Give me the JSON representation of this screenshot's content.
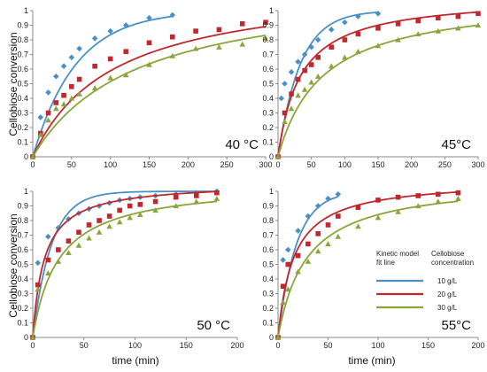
{
  "figure": {
    "ylabel": "Cellobiose conversion",
    "xlabel": "time (min)"
  },
  "legend": {
    "header_line1": "Kinetic model",
    "header_line2": "fit line",
    "header2_line1": "Cellobiose",
    "header2_line2": "concentration",
    "entries": [
      {
        "label": "10 g/L",
        "color": "#4a90c8"
      },
      {
        "label": "20 g/L",
        "color": "#c0282d"
      },
      {
        "label": "30 g/L",
        "color": "#8aa63a"
      }
    ]
  },
  "chart_data": [
    {
      "type": "scatter",
      "panel": "top-left",
      "label": "40 °C",
      "xlim": [
        0,
        300
      ],
      "ylim": [
        0,
        1
      ],
      "xticks": [
        0,
        50,
        100,
        150,
        200,
        250,
        300
      ],
      "yticks": [
        0,
        0.1,
        0.2,
        0.3,
        0.4,
        0.5,
        0.6,
        0.7,
        0.8,
        0.9,
        1
      ],
      "ytick_labels": [
        "0",
        "0.1",
        "0.2",
        "0.3",
        "0.4",
        "0.5",
        "0.6",
        "0.7",
        "0.8",
        "0.9",
        "1"
      ],
      "series": [
        {
          "marker": "diamond",
          "color": "#4a90c8",
          "x": [
            0,
            10,
            20,
            30,
            40,
            50,
            60,
            80,
            100,
            120,
            150,
            180
          ],
          "y": [
            0,
            0.27,
            0.44,
            0.55,
            0.62,
            0.68,
            0.74,
            0.81,
            0.86,
            0.9,
            0.95,
            0.97
          ],
          "fit": {
            "kind": "exp",
            "max": 1.0,
            "k": 0.018,
            "xmax": 180
          }
        },
        {
          "marker": "square",
          "color": "#c0282d",
          "x": [
            0,
            10,
            20,
            30,
            40,
            50,
            60,
            80,
            100,
            120,
            150,
            180,
            210,
            240,
            270,
            300
          ],
          "y": [
            0,
            0.16,
            0.3,
            0.37,
            0.42,
            0.48,
            0.53,
            0.62,
            0.67,
            0.72,
            0.78,
            0.82,
            0.86,
            0.87,
            0.91,
            0.92
          ],
          "fit": {
            "kind": "hyp",
            "max": 1.2,
            "k": 0.0096,
            "xmax": 300
          }
        },
        {
          "marker": "triangle",
          "color": "#8aa63a",
          "x": [
            0,
            10,
            20,
            30,
            40,
            50,
            60,
            80,
            100,
            120,
            150,
            180,
            210,
            240,
            270,
            300
          ],
          "y": [
            0,
            0.15,
            0.25,
            0.33,
            0.36,
            0.4,
            0.43,
            0.47,
            0.54,
            0.56,
            0.63,
            0.69,
            0.74,
            0.75,
            0.77,
            0.81
          ],
          "fit": {
            "kind": "hyp",
            "max": 1.2,
            "k": 0.0075,
            "xmax": 300
          }
        }
      ]
    },
    {
      "type": "scatter",
      "panel": "top-right",
      "label": "45°C",
      "xlim": [
        0,
        300
      ],
      "ylim": [
        0,
        1
      ],
      "xticks": [
        0,
        50,
        100,
        150,
        200,
        250,
        300
      ],
      "yticks": [
        0,
        0.1,
        0.2,
        0.3,
        0.4,
        0.5,
        0.6,
        0.7,
        0.8,
        0.9,
        1
      ],
      "ytick_labels": [
        "0",
        "0.1",
        "0.2",
        "0.3",
        "0.4",
        "0.5",
        "0.6",
        "0.7",
        "0.8",
        "0.9",
        "1"
      ],
      "series": [
        {
          "marker": "diamond",
          "color": "#4a90c8",
          "x": [
            0,
            5,
            10,
            20,
            30,
            40,
            50,
            60,
            80,
            100,
            120,
            150
          ],
          "y": [
            0,
            0.4,
            0.5,
            0.58,
            0.65,
            0.7,
            0.75,
            0.8,
            0.87,
            0.92,
            0.96,
            0.98
          ],
          "fit": {
            "kind": "exp",
            "max": 1.0,
            "k": 0.03,
            "xmax": 150
          }
        },
        {
          "marker": "square",
          "color": "#c0282d",
          "x": [
            0,
            10,
            20,
            30,
            40,
            50,
            60,
            80,
            100,
            120,
            150,
            180,
            210,
            240,
            270,
            300
          ],
          "y": [
            0,
            0.3,
            0.43,
            0.53,
            0.59,
            0.63,
            0.68,
            0.75,
            0.8,
            0.84,
            0.88,
            0.91,
            0.93,
            0.95,
            0.96,
            0.98
          ],
          "fit": {
            "kind": "hyp",
            "max": 1.1,
            "k": 0.03,
            "xmax": 300
          }
        },
        {
          "marker": "triangle",
          "color": "#8aa63a",
          "x": [
            0,
            10,
            20,
            30,
            40,
            50,
            60,
            80,
            100,
            120,
            150,
            180,
            210,
            240,
            270,
            300
          ],
          "y": [
            0,
            0.24,
            0.33,
            0.42,
            0.46,
            0.51,
            0.55,
            0.62,
            0.68,
            0.72,
            0.76,
            0.8,
            0.84,
            0.86,
            0.88,
            0.9
          ],
          "fit": {
            "kind": "hyp",
            "max": 1.1,
            "k": 0.015,
            "xmax": 300
          }
        }
      ]
    },
    {
      "type": "scatter",
      "panel": "bottom-left",
      "label": "50 °C",
      "xlim": [
        0,
        200
      ],
      "ylim": [
        0,
        1
      ],
      "xticks": [
        0,
        50,
        100,
        150,
        200
      ],
      "yticks": [
        0,
        0.1,
        0.2,
        0.3,
        0.4,
        0.5,
        0.6,
        0.7,
        0.8,
        0.9,
        1
      ],
      "ytick_labels": [
        "0",
        "0.1",
        "0.2",
        "0.3",
        "0.4",
        "0.5",
        "0.6",
        "0.7",
        "0.8",
        "0.9",
        "1"
      ],
      "series": [
        {
          "marker": "diamond",
          "color": "#4a90c8",
          "x": [
            0,
            5,
            15,
            25,
            35,
            45,
            55,
            65,
            75,
            85,
            95,
            105,
            120,
            140,
            160,
            180
          ],
          "y": [
            0,
            0.51,
            0.69,
            0.75,
            0.81,
            0.85,
            0.88,
            0.9,
            0.92,
            0.94,
            0.95,
            0.96,
            0.97,
            0.98,
            0.99,
            1.0
          ],
          "fit": {
            "kind": "exp",
            "max": 1.0,
            "k": 0.055,
            "xmax": 180
          }
        },
        {
          "marker": "square",
          "color": "#c0282d",
          "x": [
            0,
            5,
            15,
            25,
            35,
            45,
            55,
            65,
            75,
            85,
            95,
            105,
            120,
            140,
            160,
            180
          ],
          "y": [
            0,
            0.36,
            0.53,
            0.6,
            0.66,
            0.72,
            0.77,
            0.8,
            0.83,
            0.87,
            0.9,
            0.91,
            0.93,
            0.96,
            0.97,
            0.99
          ],
          "fit": {
            "kind": "hyp",
            "max": 1.06,
            "k": 0.09,
            "xmax": 180
          }
        },
        {
          "marker": "triangle",
          "color": "#8aa63a",
          "x": [
            0,
            5,
            15,
            25,
            35,
            45,
            55,
            65,
            75,
            85,
            95,
            105,
            120,
            140,
            160,
            180
          ],
          "y": [
            0,
            0.33,
            0.44,
            0.52,
            0.58,
            0.63,
            0.68,
            0.72,
            0.76,
            0.79,
            0.82,
            0.84,
            0.87,
            0.9,
            0.93,
            0.95
          ],
          "fit": {
            "kind": "hyp",
            "max": 1.06,
            "k": 0.04,
            "xmax": 180
          }
        }
      ]
    },
    {
      "type": "scatter",
      "panel": "bottom-right",
      "label": "55°C",
      "xlim": [
        0,
        200
      ],
      "ylim": [
        0,
        1
      ],
      "xticks": [
        0,
        50,
        100,
        150,
        200
      ],
      "yticks": [
        0,
        0.1,
        0.2,
        0.3,
        0.4,
        0.5,
        0.6,
        0.7,
        0.8,
        0.9,
        1
      ],
      "ytick_labels": [
        "0",
        "0.1",
        "0.2",
        "0.3",
        "0.4",
        "0.5",
        "0.6",
        "0.7",
        "0.8",
        "0.9",
        "1"
      ],
      "series": [
        {
          "marker": "diamond",
          "color": "#4a90c8",
          "x": [
            0,
            5,
            10,
            20,
            30,
            40,
            50,
            60
          ],
          "y": [
            0,
            0.53,
            0.6,
            0.73,
            0.83,
            0.9,
            0.95,
            0.98
          ],
          "fit": {
            "kind": "exp",
            "max": 1.0,
            "k": 0.055,
            "xmax": 60
          }
        },
        {
          "marker": "square",
          "color": "#c0282d",
          "x": [
            0,
            5,
            10,
            20,
            30,
            40,
            50,
            60,
            80,
            100,
            120,
            140,
            160,
            180
          ],
          "y": [
            0,
            0.35,
            0.5,
            0.56,
            0.64,
            0.71,
            0.77,
            0.83,
            0.89,
            0.94,
            0.96,
            0.97,
            0.98,
            0.99
          ],
          "fit": {
            "kind": "hyp",
            "max": 1.08,
            "k": 0.065,
            "xmax": 180
          }
        },
        {
          "marker": "triangle",
          "color": "#8aa63a",
          "x": [
            0,
            5,
            10,
            20,
            30,
            40,
            50,
            60,
            80,
            100,
            120,
            140,
            160,
            180
          ],
          "y": [
            0,
            0.24,
            0.33,
            0.45,
            0.52,
            0.59,
            0.64,
            0.69,
            0.76,
            0.82,
            0.86,
            0.9,
            0.93,
            0.95
          ],
          "fit": {
            "kind": "hyp",
            "max": 1.08,
            "k": 0.035,
            "xmax": 180
          }
        }
      ]
    }
  ]
}
